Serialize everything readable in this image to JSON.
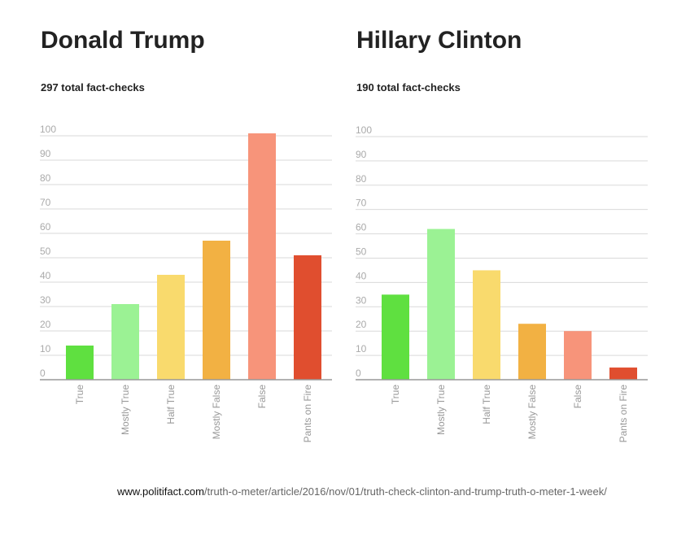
{
  "chart_data": [
    {
      "type": "bar",
      "title": "Donald Trump",
      "subtitle": "297 total fact-checks",
      "categories": [
        "True",
        "Mostly True",
        "Half True",
        "Mostly False",
        "False",
        "Pants on Fire"
      ],
      "values": [
        14,
        31,
        43,
        57,
        101,
        51
      ],
      "colors": [
        "#5fe040",
        "#9bf294",
        "#f9da6d",
        "#f2b143",
        "#f7947a",
        "#e04e2f"
      ],
      "yticks": [
        0,
        10,
        20,
        30,
        40,
        50,
        60,
        70,
        80,
        90,
        100
      ],
      "ylim": [
        0,
        101
      ],
      "grid": true,
      "legend": "none"
    },
    {
      "type": "bar",
      "title": "Hillary Clinton",
      "subtitle": "190 total fact-checks",
      "categories": [
        "True",
        "Mostly True",
        "Half True",
        "Mostly False",
        "False",
        "Pants on Fire"
      ],
      "values": [
        35,
        62,
        45,
        23,
        20,
        5
      ],
      "colors": [
        "#5fe040",
        "#9bf294",
        "#f9da6d",
        "#f2b143",
        "#f7947a",
        "#e04e2f"
      ],
      "yticks": [
        0,
        10,
        20,
        30,
        40,
        50,
        60,
        70,
        80,
        90,
        100
      ],
      "ylim": [
        0,
        102
      ],
      "grid": true,
      "legend": "none"
    }
  ],
  "source": {
    "domain": "www.politifact.com",
    "path": "/truth-o-meter/article/2016/nov/01/truth-check-clinton-and-trump-truth-o-meter-1-week/"
  }
}
